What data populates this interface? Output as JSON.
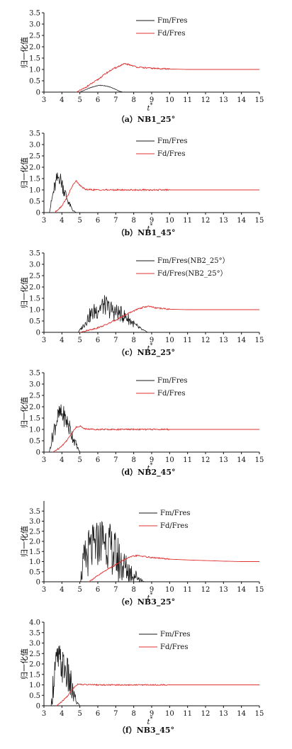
{
  "figure": {
    "x_ticks": [
      "3",
      "4",
      "5",
      "6",
      "7",
      "8",
      "9",
      "10",
      "11",
      "12",
      "13",
      "14",
      "15"
    ],
    "y_ticks": [
      "0",
      "0.5",
      "1.0",
      "1.5",
      "2.0",
      "2.5",
      "3.0",
      "3.5",
      "4.0"
    ]
  },
  "panels": [
    {
      "caption": "（a）NB1_25°",
      "ylabel": "归一化值",
      "xlabel": "t*",
      "legend": [
        "Fm/Fres",
        "Fd/Fres"
      ]
    },
    {
      "caption": "（b）NB1_45°",
      "ylabel": "归一化值",
      "xlabel": "t*",
      "legend": [
        "Fm/Fres",
        "Fd/Fres"
      ]
    },
    {
      "caption": "（c）NB2_25°",
      "ylabel": "归一化值",
      "xlabel": "t*",
      "legend": [
        "Fm/Fres(NB2_25°）",
        "Fd/Fres(NB2_25°）"
      ]
    },
    {
      "caption": "（d）NB2_45°",
      "ylabel": "归一化值",
      "xlabel": "t*",
      "legend": [
        "Fm/Fres",
        "Fd/Fres"
      ]
    },
    {
      "caption": "（e）NB3_25°",
      "ylabel": "归一化值",
      "xlabel": "t*",
      "legend": [
        "Fm/Fres",
        "Fd/Fres"
      ]
    },
    {
      "caption": "（f）NB3_45°",
      "ylabel": "归一化值",
      "xlabel": "t*",
      "legend": [
        "Fm/Fres",
        "Fd/Fres"
      ]
    }
  ],
  "colors": {
    "fm": "#1a1a1a",
    "fd": "#e03030",
    "axis": "#111111"
  },
  "chart_data": [
    {
      "type": "line",
      "ylim": [
        0,
        3.5
      ],
      "xlim": [
        3,
        15
      ],
      "series": [
        {
          "name": "Fm/Fres",
          "x": [
            5.0,
            5.3,
            5.6,
            5.9,
            6.1,
            6.4,
            6.7,
            7.0,
            7.2,
            7.4
          ],
          "y": [
            0,
            0.1,
            0.2,
            0.27,
            0.3,
            0.28,
            0.22,
            0.12,
            0.04,
            0
          ]
        },
        {
          "name": "Fd/Fres",
          "x": [
            4.8,
            5.2,
            5.6,
            6.0,
            6.4,
            6.8,
            7.2,
            7.5,
            7.8,
            8.2,
            9,
            10,
            11,
            12,
            13,
            14,
            15
          ],
          "y": [
            0,
            0.15,
            0.35,
            0.55,
            0.8,
            1.0,
            1.15,
            1.25,
            1.2,
            1.1,
            1.05,
            1.02,
            1.0,
            1.0,
            1.0,
            1.0,
            1.0
          ]
        }
      ]
    },
    {
      "type": "line",
      "ylim": [
        0,
        3.5
      ],
      "xlim": [
        3,
        15
      ],
      "series": [
        {
          "name": "Fm/Fres",
          "x": [
            3.3,
            3.5,
            3.7,
            3.85,
            4.0,
            4.2,
            4.4,
            4.6,
            4.8
          ],
          "y": [
            0,
            0.8,
            1.4,
            1.6,
            1.3,
            0.8,
            0.4,
            0.1,
            0
          ]
        },
        {
          "name": "Fd/Fres",
          "x": [
            3.6,
            4.0,
            4.3,
            4.6,
            4.8,
            5.0,
            5.3,
            6,
            8,
            10,
            12,
            15
          ],
          "y": [
            0,
            0.3,
            0.7,
            1.2,
            1.4,
            1.2,
            1.02,
            1.0,
            1.0,
            1.0,
            1.0,
            1.0
          ]
        }
      ]
    },
    {
      "type": "line",
      "ylim": [
        0,
        3.5
      ],
      "xlim": [
        3,
        15
      ],
      "series": [
        {
          "name": "Fm/Fres(NB2_25°）",
          "x": [
            4.9,
            5.2,
            5.5,
            5.8,
            6.1,
            6.4,
            6.7,
            7.0,
            7.3,
            7.7,
            8.1,
            8.5,
            8.8
          ],
          "y": [
            0,
            0.3,
            0.7,
            0.9,
            1.1,
            1.2,
            1.0,
            0.9,
            0.8,
            0.6,
            0.3,
            0.1,
            0
          ]
        },
        {
          "name": "Fd/Fres(NB2_25°）",
          "x": [
            5.0,
            5.5,
            6.0,
            6.5,
            7.0,
            7.5,
            8.0,
            8.5,
            8.8,
            9.2,
            10,
            11,
            12,
            13,
            15
          ],
          "y": [
            0,
            0.1,
            0.2,
            0.35,
            0.55,
            0.75,
            0.95,
            1.1,
            1.15,
            1.08,
            1.02,
            1.0,
            1.0,
            1.0,
            1.0
          ]
        }
      ]
    },
    {
      "type": "line",
      "ylim": [
        0,
        3.5
      ],
      "xlim": [
        3,
        15
      ],
      "series": [
        {
          "name": "Fm/Fres",
          "x": [
            3.3,
            3.5,
            3.7,
            3.9,
            4.1,
            4.3,
            4.5,
            4.7,
            4.9,
            5.0
          ],
          "y": [
            0,
            0.8,
            1.4,
            1.7,
            1.6,
            1.3,
            0.9,
            0.5,
            0.15,
            0
          ]
        },
        {
          "name": "Fd/Fres",
          "x": [
            3.5,
            3.8,
            4.1,
            4.4,
            4.6,
            4.8,
            5.0,
            5.3,
            6,
            8,
            10,
            12,
            15
          ],
          "y": [
            0,
            0.15,
            0.35,
            0.65,
            0.9,
            1.1,
            1.15,
            1.02,
            1.0,
            1.0,
            1.0,
            1.0,
            1.0
          ]
        }
      ]
    },
    {
      "type": "line",
      "ylim": [
        0,
        4.0
      ],
      "xlim": [
        3,
        15
      ],
      "series": [
        {
          "name": "Fm/Fres",
          "x": [
            5.0,
            5.2,
            5.5,
            5.8,
            6.1,
            6.3,
            6.6,
            6.9,
            7.2,
            7.5,
            7.8,
            8.1,
            8.4,
            8.6
          ],
          "y": [
            0,
            0.8,
            1.5,
            1.7,
            2.0,
            2.2,
            1.8,
            1.4,
            1.0,
            0.7,
            0.5,
            0.3,
            0.1,
            0
          ]
        },
        {
          "name": "Fd/Fres",
          "x": [
            5.5,
            6.0,
            6.5,
            7.0,
            7.3,
            7.6,
            7.9,
            8.2,
            8.6,
            9,
            10,
            11,
            12,
            13,
            14,
            15
          ],
          "y": [
            0,
            0.3,
            0.6,
            0.85,
            1.0,
            1.15,
            1.25,
            1.3,
            1.25,
            1.2,
            1.12,
            1.08,
            1.05,
            1.02,
            1.0,
            1.0
          ]
        }
      ]
    },
    {
      "type": "line",
      "ylim": [
        0,
        4.0
      ],
      "xlim": [
        3,
        15
      ],
      "series": [
        {
          "name": "Fm/Fres",
          "x": [
            3.4,
            3.6,
            3.8,
            4.0,
            4.2,
            4.4,
            4.6,
            4.8,
            5.0
          ],
          "y": [
            0,
            1.8,
            2.2,
            1.9,
            1.7,
            1.2,
            0.6,
            0.2,
            0
          ]
        },
        {
          "name": "Fd/Fres",
          "x": [
            3.7,
            4.0,
            4.3,
            4.5,
            4.7,
            4.9,
            5.1,
            6,
            8,
            10,
            12,
            15
          ],
          "y": [
            0,
            0.2,
            0.45,
            0.7,
            0.9,
            1.05,
            1.02,
            1.0,
            1.0,
            1.0,
            1.0,
            1.0
          ]
        }
      ]
    }
  ]
}
